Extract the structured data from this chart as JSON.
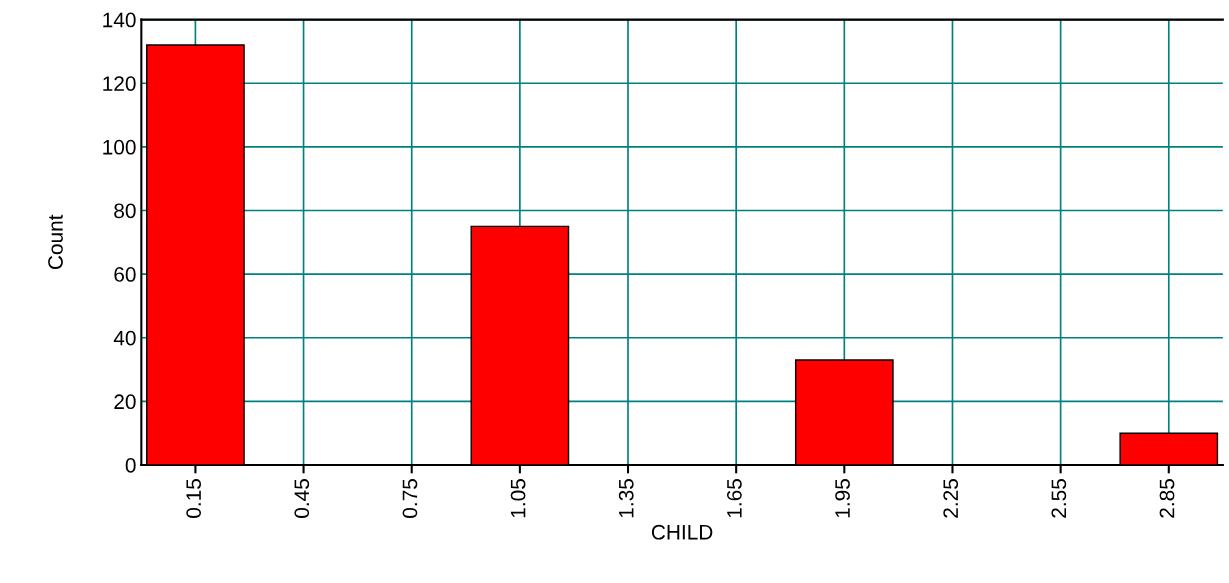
{
  "chart_data": {
    "type": "histogram",
    "xlabel": "CHILD",
    "ylabel": "Count",
    "bins": [
      0,
      0.3,
      0.6,
      0.9,
      1.2,
      1.5,
      1.8,
      2.1,
      2.4,
      2.7,
      3.0
    ],
    "values": [
      132,
      0,
      0,
      75,
      0,
      0,
      33,
      0,
      0,
      10
    ],
    "color": "#ff0000",
    "xlim": [
      0,
      3.0
    ],
    "ylim": [
      0,
      140
    ],
    "xticks": [
      0.15,
      0.45,
      0.75,
      1.05,
      1.35,
      1.65,
      1.95,
      2.25,
      2.55,
      2.85
    ],
    "yticks": [
      0,
      20,
      40,
      60,
      80,
      100,
      120,
      140
    ],
    "grid": true
  }
}
